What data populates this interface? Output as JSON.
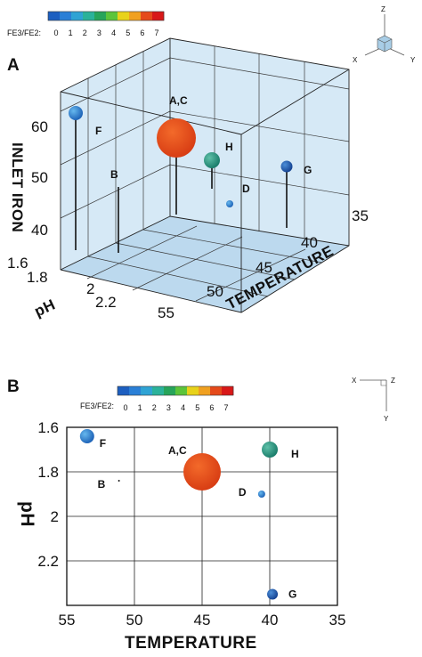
{
  "colorbar": {
    "label": "FE3/FE2:",
    "ticks": [
      "0",
      "1",
      "2",
      "3",
      "4",
      "5",
      "6",
      "7"
    ],
    "colors": [
      "#1d5fc0",
      "#2a7fd6",
      "#2fa3d4",
      "#2bb29a",
      "#27a45a",
      "#5cc43a",
      "#e8d21a",
      "#f0a020",
      "#e54a1a",
      "#d81818"
    ]
  },
  "chart_data": [
    {
      "panel": "A",
      "type": "scatter",
      "projection": "3d",
      "xlabel": "TEMPERATURE",
      "ylabel": "pH",
      "zlabel": "INLET IRON",
      "x_ticks": [
        "55",
        "50",
        "45",
        "40",
        "35"
      ],
      "y_ticks": [
        "1.6",
        "1.8",
        "2",
        "2.2"
      ],
      "z_ticks": [
        "40",
        "50",
        "60"
      ],
      "xlim": [
        55,
        35
      ],
      "ylim": [
        1.6,
        2.3
      ],
      "zlim": [
        35,
        65
      ],
      "axis_triad": [
        "Z",
        "X",
        "Y"
      ],
      "points": [
        {
          "label": "F",
          "temperature": 53.5,
          "ph": 1.65,
          "inlet_iron": 62,
          "fe_ratio": 1.5,
          "color": "#2a7fd6"
        },
        {
          "label": "B",
          "temperature": 52,
          "ph": 1.85,
          "inlet_iron": 47,
          "fe_ratio": 0,
          "color": "#1d5fc0",
          "marker": "none"
        },
        {
          "label": "A,C",
          "temperature": 45,
          "ph": 1.8,
          "inlet_iron": 58,
          "fe_ratio": 7,
          "color": "#e54a1a"
        },
        {
          "label": "H",
          "temperature": 40,
          "ph": 1.7,
          "inlet_iron": 52,
          "fe_ratio": 3,
          "color": "#1e8f7e"
        },
        {
          "label": "D",
          "temperature": 40.5,
          "ph": 1.9,
          "inlet_iron": 42,
          "fe_ratio": 1,
          "color": "#1f74c8"
        },
        {
          "label": "G",
          "temperature": 39.5,
          "ph": 2.35,
          "inlet_iron": 50,
          "fe_ratio": 1,
          "color": "#1f6cc0"
        }
      ]
    },
    {
      "panel": "B",
      "type": "scatter",
      "xlabel": "TEMPERATURE",
      "ylabel": "pH",
      "x_ticks": [
        "55",
        "50",
        "45",
        "40",
        "35"
      ],
      "y_ticks": [
        "1.6",
        "1.8",
        "2",
        "2.2"
      ],
      "xlim": [
        55,
        35
      ],
      "ylim": [
        1.6,
        2.4
      ],
      "axis_triad": [
        "X",
        "Z",
        "Y"
      ],
      "grid": true,
      "points": [
        {
          "label": "F",
          "temperature": 53.5,
          "ph": 1.64,
          "fe_ratio": 1.5,
          "color": "#2a7fd6"
        },
        {
          "label": "B",
          "temperature": 51.8,
          "ph": 1.84,
          "fe_ratio": 0,
          "color": "#1d5fc0"
        },
        {
          "label": "A,C",
          "temperature": 45,
          "ph": 1.8,
          "fe_ratio": 7,
          "color": "#e54a1a"
        },
        {
          "label": "H",
          "temperature": 40,
          "ph": 1.7,
          "fe_ratio": 3,
          "color": "#1e8f7e"
        },
        {
          "label": "D",
          "temperature": 40.6,
          "ph": 1.9,
          "fe_ratio": 1,
          "color": "#1f74c8"
        },
        {
          "label": "G",
          "temperature": 39.8,
          "ph": 2.35,
          "fe_ratio": 1,
          "color": "#1f6cc0"
        }
      ]
    }
  ]
}
